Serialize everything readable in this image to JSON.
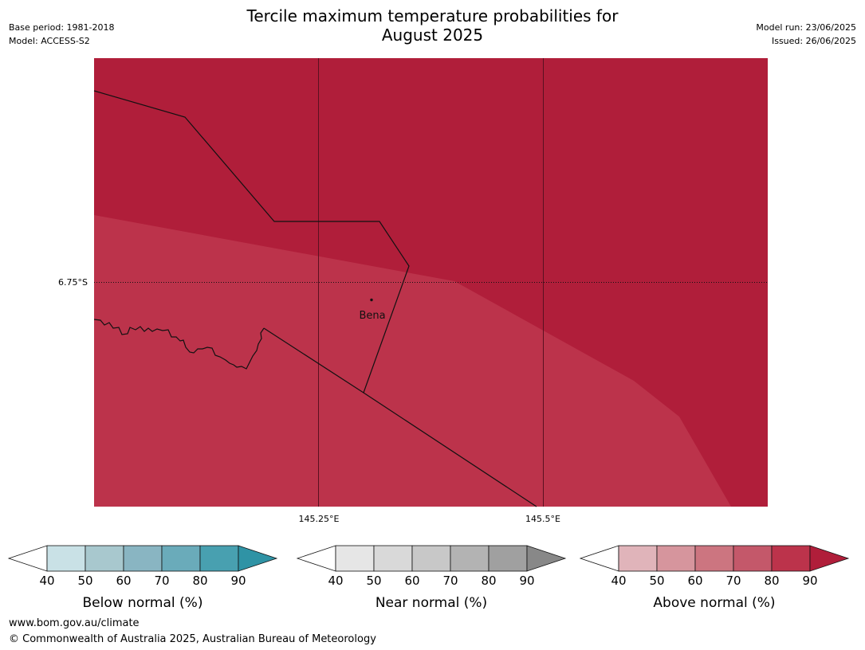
{
  "title_line1": "Tercile maximum temperature probabilities for",
  "title_line2": "August 2025",
  "meta_left": {
    "base_period": "Base period: 1981-2018",
    "model": "Model: ACCESS-S2"
  },
  "meta_right": {
    "model_run": "Model run: 23/06/2025",
    "issued": "Issued: 26/06/2025"
  },
  "map": {
    "lat_label": "6.75°S",
    "lon_labels": [
      "145.25°E",
      "145.5°E"
    ],
    "place": "Bena",
    "colors": {
      "ocean_band": "#b01e3a",
      "land_band": "#bc334b",
      "line": "#111111"
    }
  },
  "legends": [
    {
      "title": "Below normal (%)",
      "ticks": [
        "40",
        "50",
        "60",
        "70",
        "80",
        "90"
      ],
      "colors": [
        "#ffffff",
        "#c9e1e6",
        "#a8c8ce",
        "#89b5c2",
        "#6aabba",
        "#48a0b0",
        "#2f93a5"
      ]
    },
    {
      "title": "Near normal (%)",
      "ticks": [
        "40",
        "50",
        "60",
        "70",
        "80",
        "90"
      ],
      "colors": [
        "#ffffff",
        "#e6e6e6",
        "#d9d9d9",
        "#c8c8c8",
        "#b3b3b3",
        "#a0a0a0",
        "#888888"
      ]
    },
    {
      "title": "Above normal (%)",
      "ticks": [
        "40",
        "50",
        "60",
        "70",
        "80",
        "90"
      ],
      "colors": [
        "#ffffff",
        "#e0b4ba",
        "#d6959d",
        "#cc7580",
        "#c4586a",
        "#bc334b",
        "#b01e3a"
      ]
    }
  ],
  "footer": {
    "url": "www.bom.gov.au/climate",
    "copyright": "© Commonwealth of Australia 2025, Australian Bureau of Meteorology"
  }
}
